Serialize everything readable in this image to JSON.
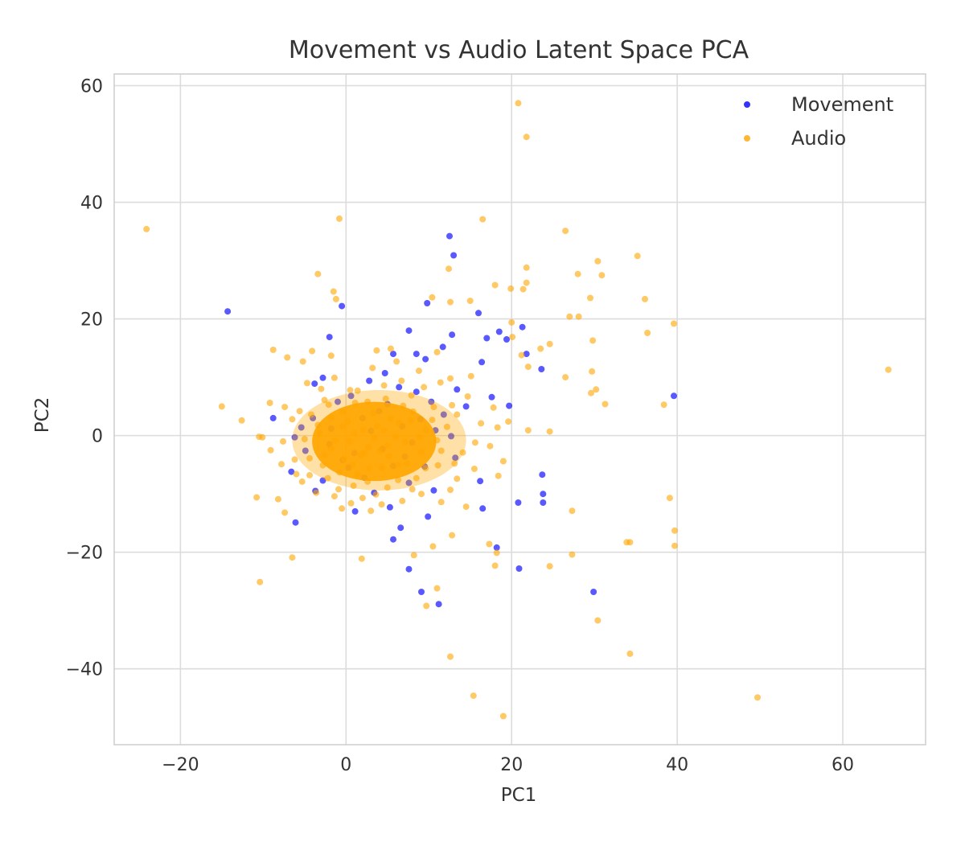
{
  "chart_data": {
    "type": "scatter",
    "title": "Movement vs Audio Latent Space PCA",
    "xlabel": "PC1",
    "ylabel": "PC2",
    "xlim": [
      -28,
      70
    ],
    "ylim": [
      -53,
      62
    ],
    "xticks": [
      -20,
      0,
      20,
      40,
      60
    ],
    "yticks": [
      -40,
      -20,
      0,
      20,
      40,
      60
    ],
    "xtick_labels": [
      "−20",
      "0",
      "20",
      "40",
      "60"
    ],
    "ytick_labels": [
      "−40",
      "−20",
      "0",
      "20",
      "40",
      "60"
    ],
    "grid": true,
    "legend_position": "top-right",
    "series": [
      {
        "name": "Movement",
        "color": "#0000ff",
        "points": [
          [
            -14.3,
            21.3
          ],
          [
            12.5,
            34.2
          ],
          [
            13.0,
            30.9
          ],
          [
            -0.5,
            22.2
          ],
          [
            9.8,
            22.7
          ],
          [
            16.0,
            21.0
          ],
          [
            -2.0,
            16.9
          ],
          [
            7.6,
            18.0
          ],
          [
            18.5,
            17.8
          ],
          [
            21.3,
            18.6
          ],
          [
            17.0,
            16.7
          ],
          [
            19.4,
            16.5
          ],
          [
            12.8,
            17.3
          ],
          [
            5.7,
            14.0
          ],
          [
            11.7,
            15.2
          ],
          [
            8.5,
            14.0
          ],
          [
            9.6,
            13.1
          ],
          [
            16.4,
            12.6
          ],
          [
            21.8,
            14.0
          ],
          [
            23.6,
            11.4
          ],
          [
            -2.8,
            9.9
          ],
          [
            -3.8,
            8.9
          ],
          [
            4.7,
            10.7
          ],
          [
            2.8,
            9.4
          ],
          [
            6.4,
            8.3
          ],
          [
            8.5,
            7.5
          ],
          [
            13.4,
            7.9
          ],
          [
            17.6,
            6.6
          ],
          [
            -1.0,
            5.8
          ],
          [
            0.6,
            6.8
          ],
          [
            5.0,
            5.4
          ],
          [
            10.3,
            5.8
          ],
          [
            14.5,
            5.0
          ],
          [
            19.7,
            5.1
          ],
          [
            39.6,
            6.8
          ],
          [
            -4.0,
            3.0
          ],
          [
            2.0,
            3.0
          ],
          [
            9.0,
            2.8
          ],
          [
            11.8,
            3.6
          ],
          [
            -8.8,
            3.0
          ],
          [
            -5.4,
            1.4
          ],
          [
            -6.2,
            -0.3
          ],
          [
            12.7,
            -0.1
          ],
          [
            -2.0,
            -1.5
          ],
          [
            8.0,
            -1.2
          ],
          [
            -4.9,
            -2.6
          ],
          [
            1.0,
            -3.0
          ],
          [
            -6.6,
            -6.2
          ],
          [
            0.3,
            -5.5
          ],
          [
            5.7,
            -5.2
          ],
          [
            9.5,
            -5.3
          ],
          [
            23.7,
            -6.7
          ],
          [
            -2.8,
            -7.7
          ],
          [
            -3.7,
            -9.5
          ],
          [
            7.6,
            -8.1
          ],
          [
            16.2,
            -7.8
          ],
          [
            3.4,
            -9.8
          ],
          [
            10.6,
            -9.4
          ],
          [
            23.8,
            -10.0
          ],
          [
            23.8,
            -11.5
          ],
          [
            20.8,
            -11.5
          ],
          [
            16.5,
            -12.5
          ],
          [
            -6.1,
            -14.9
          ],
          [
            1.1,
            -13.0
          ],
          [
            5.3,
            -12.3
          ],
          [
            9.9,
            -13.9
          ],
          [
            6.6,
            -15.8
          ],
          [
            5.7,
            -17.8
          ],
          [
            18.2,
            -19.2
          ],
          [
            7.6,
            -22.9
          ],
          [
            20.9,
            -22.8
          ],
          [
            9.1,
            -26.8
          ],
          [
            11.2,
            -28.9
          ],
          [
            29.9,
            -26.8
          ],
          [
            3.0,
            0.8
          ],
          [
            4.4,
            -2.3
          ],
          [
            6.8,
            1.6
          ],
          [
            -0.4,
            -4.2
          ],
          [
            2.2,
            -7.2
          ],
          [
            7.1,
            -3.6
          ],
          [
            10.8,
            0.9
          ],
          [
            4.0,
            4.2
          ],
          [
            -1.8,
            1.2
          ],
          [
            13.2,
            -3.8
          ]
        ]
      },
      {
        "name": "Audio",
        "color": "#ffa500",
        "points": [
          [
            20.8,
            57.0
          ],
          [
            21.8,
            51.2
          ],
          [
            -24.1,
            35.4
          ],
          [
            -0.8,
            37.2
          ],
          [
            16.5,
            37.1
          ],
          [
            26.5,
            35.1
          ],
          [
            35.2,
            30.8
          ],
          [
            30.4,
            29.9
          ],
          [
            30.9,
            27.5
          ],
          [
            28.0,
            27.7
          ],
          [
            21.8,
            28.8
          ],
          [
            12.4,
            28.6
          ],
          [
            -3.4,
            27.7
          ],
          [
            18.0,
            25.8
          ],
          [
            19.9,
            25.2
          ],
          [
            21.4,
            25.1
          ],
          [
            21.8,
            26.2
          ],
          [
            -1.5,
            24.7
          ],
          [
            -1.2,
            23.4
          ],
          [
            10.4,
            23.7
          ],
          [
            15.0,
            23.1
          ],
          [
            29.5,
            23.6
          ],
          [
            36.1,
            23.4
          ],
          [
            12.6,
            22.9
          ],
          [
            27.0,
            20.4
          ],
          [
            28.1,
            20.4
          ],
          [
            20.0,
            19.4
          ],
          [
            39.6,
            19.2
          ],
          [
            36.4,
            17.6
          ],
          [
            20.1,
            16.9
          ],
          [
            29.8,
            16.3
          ],
          [
            24.6,
            15.7
          ],
          [
            23.5,
            14.9
          ],
          [
            -4.1,
            14.5
          ],
          [
            -8.8,
            14.7
          ],
          [
            -7.1,
            13.4
          ],
          [
            -5.2,
            12.7
          ],
          [
            -1.8,
            13.7
          ],
          [
            21.2,
            13.8
          ],
          [
            3.7,
            14.6
          ],
          [
            5.4,
            14.9
          ],
          [
            11.0,
            14.3
          ],
          [
            26.5,
            10.0
          ],
          [
            29.7,
            11.0
          ],
          [
            22.0,
            11.8
          ],
          [
            65.5,
            11.3
          ],
          [
            29.6,
            7.3
          ],
          [
            30.2,
            7.9
          ],
          [
            31.3,
            5.4
          ],
          [
            38.4,
            5.3
          ],
          [
            -15.0,
            5.0
          ],
          [
            -9.2,
            5.6
          ],
          [
            -7.4,
            4.9
          ],
          [
            -12.6,
            2.6
          ],
          [
            -10.5,
            -0.2
          ],
          [
            -10.1,
            -0.3
          ],
          [
            24.6,
            0.7
          ],
          [
            22.0,
            0.9
          ],
          [
            -9.1,
            -2.5
          ],
          [
            -7.8,
            -4.9
          ],
          [
            -5.3,
            -7.9
          ],
          [
            -3.6,
            -9.8
          ],
          [
            -8.2,
            -10.9
          ],
          [
            -10.8,
            -10.6
          ],
          [
            -7.4,
            -13.2
          ],
          [
            -0.5,
            -12.5
          ],
          [
            0.6,
            -11.6
          ],
          [
            3.0,
            -12.9
          ],
          [
            11.5,
            -11.4
          ],
          [
            14.5,
            -12.2
          ],
          [
            27.3,
            -12.9
          ],
          [
            39.1,
            -10.7
          ],
          [
            39.7,
            -16.3
          ],
          [
            39.7,
            -18.9
          ],
          [
            33.9,
            -18.3
          ],
          [
            34.3,
            -18.3
          ],
          [
            17.3,
            -18.6
          ],
          [
            18.2,
            -20.1
          ],
          [
            -6.5,
            -20.9
          ],
          [
            1.9,
            -21.1
          ],
          [
            8.2,
            -20.5
          ],
          [
            10.5,
            -19.0
          ],
          [
            12.8,
            -17.1
          ],
          [
            27.3,
            -20.4
          ],
          [
            18.0,
            -22.3
          ],
          [
            24.6,
            -22.4
          ],
          [
            -10.4,
            -25.1
          ],
          [
            11.0,
            -26.2
          ],
          [
            9.7,
            -29.2
          ],
          [
            30.4,
            -31.7
          ],
          [
            34.3,
            -37.4
          ],
          [
            12.6,
            -37.9
          ],
          [
            15.4,
            -44.6
          ],
          [
            19.0,
            -48.1
          ],
          [
            49.7,
            -44.9
          ],
          [
            1.4,
            7.7
          ],
          [
            6.7,
            9.4
          ],
          [
            9.4,
            8.3
          ],
          [
            12.6,
            9.8
          ],
          [
            15.1,
            10.2
          ],
          [
            -4.7,
            9.0
          ],
          [
            -2.6,
            6.1
          ],
          [
            -3.0,
            8.0
          ],
          [
            14.7,
            6.7
          ],
          [
            17.8,
            4.8
          ],
          [
            16.3,
            2.1
          ],
          [
            18.3,
            1.4
          ],
          [
            19.6,
            2.4
          ],
          [
            15.6,
            -1.2
          ],
          [
            17.4,
            -1.8
          ],
          [
            19.0,
            -4.4
          ],
          [
            18.4,
            -6.9
          ],
          [
            15.5,
            -5.7
          ],
          [
            13.4,
            -7.4
          ],
          [
            12.6,
            -9.3
          ],
          [
            9.1,
            -10.0
          ],
          [
            6.8,
            -11.2
          ],
          [
            4.3,
            -11.8
          ],
          [
            2.0,
            -10.7
          ],
          [
            -1.4,
            -10.4
          ],
          [
            -4.4,
            -6.8
          ],
          [
            -6.2,
            -4.1
          ],
          [
            -7.6,
            -1.0
          ],
          [
            -6.5,
            2.8
          ],
          [
            -5.6,
            4.2
          ],
          [
            -1.4,
            9.9
          ],
          [
            3.2,
            11.6
          ],
          [
            6.1,
            12.7
          ],
          [
            8.8,
            11.1
          ],
          [
            11.4,
            9.1
          ],
          [
            13.4,
            3.6
          ],
          [
            14.1,
            -2.9
          ],
          [
            11.1,
            -5.1
          ],
          [
            8.5,
            -7.3
          ],
          [
            5.0,
            -8.9
          ],
          [
            0.9,
            -8.6
          ],
          [
            -2.2,
            -7.3
          ],
          [
            -4.4,
            -3.9
          ],
          [
            -5.0,
            -0.6
          ],
          [
            -4.2,
            3.6
          ],
          [
            -2.1,
            5.3
          ],
          [
            0.5,
            7.8
          ],
          [
            4.6,
            8.6
          ],
          [
            7.9,
            6.9
          ],
          [
            10.6,
            4.9
          ],
          [
            12.2,
            1.5
          ],
          [
            11.5,
            -2.6
          ],
          [
            9.6,
            -5.6
          ],
          [
            6.3,
            -7.6
          ],
          [
            2.6,
            -7.9
          ],
          [
            -0.8,
            -6.3
          ],
          [
            -2.6,
            -3.3
          ],
          [
            -3.2,
            0.4
          ],
          [
            -1.8,
            3.1
          ],
          [
            1.1,
            5.6
          ],
          [
            4.8,
            6.3
          ],
          [
            8.1,
            4.1
          ],
          [
            9.6,
            1.0
          ],
          [
            9.1,
            -2.8
          ],
          [
            6.3,
            -5.0
          ],
          [
            2.8,
            -5.6
          ],
          [
            -0.2,
            -4.0
          ],
          [
            -1.3,
            -0.9
          ],
          [
            0.2,
            2.4
          ],
          [
            3.3,
            3.9
          ],
          [
            6.4,
            2.2
          ],
          [
            7.2,
            -1.1
          ],
          [
            5.2,
            -3.5
          ],
          [
            1.8,
            -3.4
          ],
          [
            0.4,
            -1.0
          ],
          [
            2.1,
            1.0
          ],
          [
            4.6,
            0.9
          ],
          [
            5.0,
            -1.7
          ],
          [
            2.7,
            -2.0
          ],
          [
            3.4,
            -0.4
          ],
          [
            1.0,
            0.4
          ],
          [
            3.8,
            1.6
          ],
          [
            6.0,
            -0.2
          ],
          [
            2.2,
            -3.0
          ],
          [
            4.1,
            -2.6
          ],
          [
            -0.4,
            1.6
          ],
          [
            5.4,
            2.9
          ],
          [
            7.8,
            2.6
          ],
          [
            8.9,
            -0.3
          ],
          [
            -1.8,
            -2.2
          ],
          [
            0.8,
            -5.0
          ],
          [
            4.3,
            -5.5
          ],
          [
            7.4,
            -4.8
          ],
          [
            11.0,
            -0.8
          ],
          [
            10.4,
            2.7
          ],
          [
            -3.4,
            1.8
          ],
          [
            -0.4,
            4.1
          ],
          [
            2.6,
            5.8
          ],
          [
            6.9,
            5.1
          ],
          [
            1.4,
            -6.7
          ],
          [
            -2.8,
            -5.1
          ],
          [
            8.0,
            -9.2
          ],
          [
            3.6,
            -10.1
          ],
          [
            -0.9,
            -9.2
          ],
          [
            13.1,
            -4.8
          ],
          [
            12.8,
            5.2
          ],
          [
            -6.0,
            -6.6
          ]
        ]
      }
    ]
  }
}
